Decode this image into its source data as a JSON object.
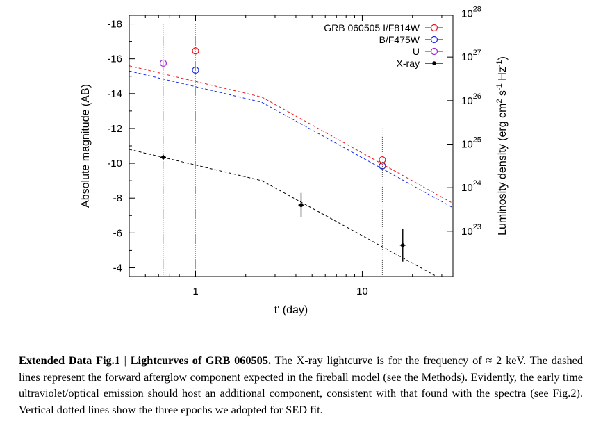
{
  "chart_data": {
    "type": "scatter",
    "xlabel": "t' (day)",
    "ylabel": "Absolute magnitude (AB)",
    "y2label": "Luminosity density (erg cm^2 s^-1 Hz^-1)",
    "x_scale": "log",
    "xlim": [
      0.4,
      35
    ],
    "ylim": [
      -3.5,
      -18.5
    ],
    "y_inverted": true,
    "x_ticks": [
      {
        "value": 1,
        "label": "1"
      },
      {
        "value": 10,
        "label": "10"
      }
    ],
    "y_ticks": [
      {
        "value": -18,
        "label": "-18"
      },
      {
        "value": -16,
        "label": "-16"
      },
      {
        "value": -14,
        "label": "-14"
      },
      {
        "value": -12,
        "label": "-12"
      },
      {
        "value": -10,
        "label": "-10"
      },
      {
        "value": -8,
        "label": "-8"
      },
      {
        "value": -6,
        "label": "-6"
      },
      {
        "value": -4,
        "label": "-4"
      }
    ],
    "y2_ticks": [
      {
        "mag": -18.6,
        "base": "10",
        "exp": "28"
      },
      {
        "mag": -16.1,
        "base": "10",
        "exp": "27"
      },
      {
        "mag": -13.6,
        "base": "10",
        "exp": "26"
      },
      {
        "mag": -11.1,
        "base": "10",
        "exp": "25"
      },
      {
        "mag": -8.6,
        "base": "10",
        "exp": "24"
      },
      {
        "mag": -6.1,
        "base": "10",
        "exp": "23"
      }
    ],
    "legend_position": "top-right",
    "series": [
      {
        "name": "GRB 060505 I/F814W",
        "color": "#e8141c",
        "marker": "open-circle",
        "points": [
          {
            "x": 1.0,
            "y": -16.45
          },
          {
            "x": 13.2,
            "y": -10.2
          }
        ]
      },
      {
        "name": "B/F475W",
        "color": "#1428e8",
        "marker": "open-circle",
        "points": [
          {
            "x": 1.0,
            "y": -15.35
          },
          {
            "x": 13.2,
            "y": -9.85
          }
        ]
      },
      {
        "name": "U",
        "color": "#a020d8",
        "marker": "open-circle",
        "points": [
          {
            "x": 0.64,
            "y": -15.75
          }
        ]
      },
      {
        "name": "X-ray",
        "color": "#000000",
        "marker": "filled-circle",
        "points": [
          {
            "x": 0.64,
            "y": -10.35,
            "yerr": 0.15
          },
          {
            "x": 4.3,
            "y": -7.6,
            "yerr": 0.7
          },
          {
            "x": 17.5,
            "y": -5.3,
            "yerr": 0.95
          }
        ]
      }
    ],
    "model_lines": [
      {
        "color": "#e8141c",
        "points": [
          {
            "x": 0.4,
            "y": -15.6
          },
          {
            "x": 2.5,
            "y": -13.8
          },
          {
            "x": 35,
            "y": -7.7
          }
        ]
      },
      {
        "color": "#1428e8",
        "points": [
          {
            "x": 0.4,
            "y": -15.3
          },
          {
            "x": 2.5,
            "y": -13.5
          },
          {
            "x": 35,
            "y": -7.45
          }
        ]
      },
      {
        "color": "#000000",
        "points": [
          {
            "x": 0.4,
            "y": -10.8
          },
          {
            "x": 2.5,
            "y": -9.0
          },
          {
            "x": 28,
            "y": -3.5
          }
        ]
      }
    ],
    "epoch_lines": [
      {
        "x": 0.64,
        "y_top": -18.0
      },
      {
        "x": 1.0,
        "y_top": -18.0
      },
      {
        "x": 13.2,
        "y_top": -12.0
      }
    ]
  },
  "caption": {
    "label": "Extended Data Fig.1",
    "separator": "|",
    "title": "Lightcurves of GRB 060505.",
    "text": "The X-ray lightcurve is for the frequency of ≈ 2 keV. The dashed lines represent the forward afterglow component expected in the fireball model (see the Methods). Evidently, the early time ultraviolet/optical emission should host an additional component, consistent with that found with the spectra (see Fig.2). Vertical dotted lines show the three epochs we adopted for SED fit."
  }
}
